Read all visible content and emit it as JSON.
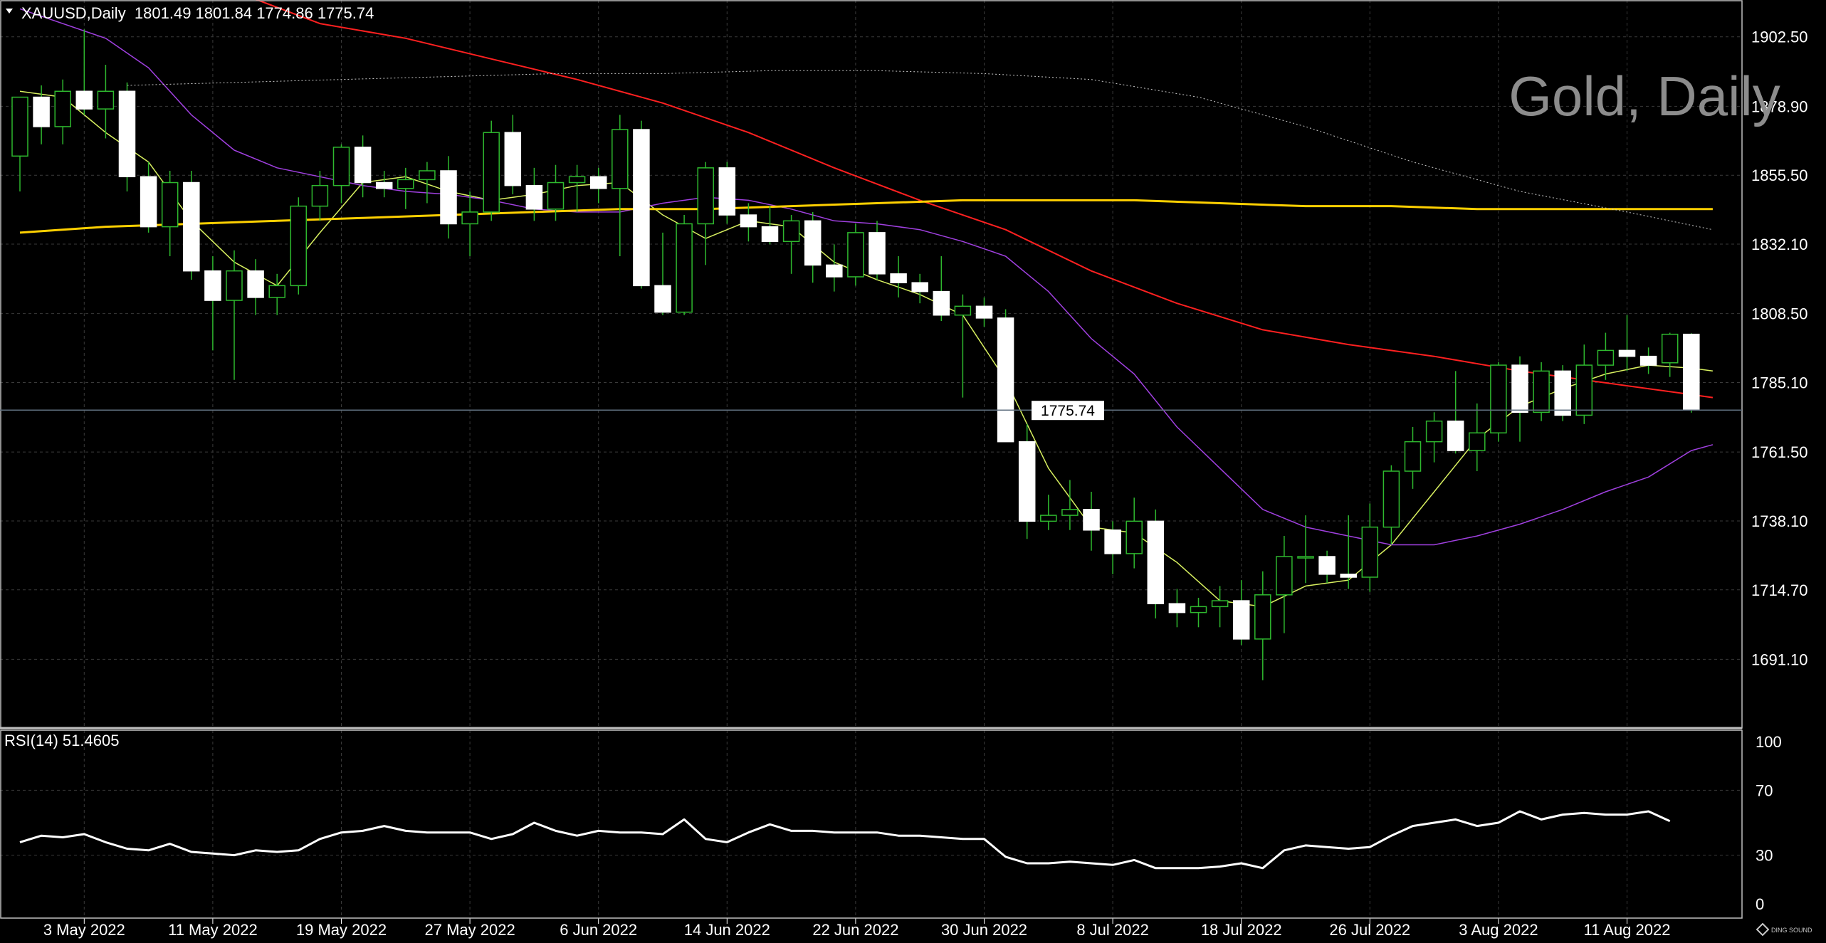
{
  "header": {
    "symbol_info": "XAUUSD,Daily  1801.49 1801.84 1774.86 1775.74"
  },
  "watermark": "Gold, Daily",
  "current_price_label": "1775.74",
  "rsi_header": "RSI(14) 51.4605",
  "logo_text": "DING SOUND",
  "colors": {
    "background": "#000000",
    "grid": "#3a3a3a",
    "candle_up_body": "#000000",
    "candle_down_body": "#ffffff",
    "wick": "#2eb82e",
    "ma_fast": "#d8f060",
    "ma_mid": "#a040e0",
    "ma_slow": "#ff2020",
    "ma_long": "#ffd000",
    "ma_long_dotted": "#c8c8c8",
    "rsi_line": "#ffffff",
    "price_line": "#607080"
  },
  "chart_data": [
    {
      "type": "candlestick",
      "title": "Gold, Daily",
      "symbol": "XAUUSD",
      "timeframe": "Daily",
      "ylim": [
        1668,
        1915
      ],
      "y_ticks": [
        "1902.50",
        "1878.90",
        "1855.50",
        "1832.10",
        "1808.50",
        "1785.10",
        "1761.50",
        "1738.10",
        "1714.70",
        "1691.10"
      ],
      "x_tick_labels": [
        "3 May 2022",
        "11 May 2022",
        "19 May 2022",
        "27 May 2022",
        "6 Jun 2022",
        "14 Jun 2022",
        "22 Jun 2022",
        "30 Jun 2022",
        "8 Jul 2022",
        "18 Jul 2022",
        "26 Jul 2022",
        "3 Aug 2022",
        "11 Aug 2022"
      ],
      "x_tick_index": [
        3,
        9,
        15,
        21,
        27,
        33,
        39,
        45,
        51,
        57,
        63,
        69,
        75
      ],
      "ohlc": [
        [
          1862,
          1882,
          1850,
          1882
        ],
        [
          1882,
          1886,
          1866,
          1872
        ],
        [
          1872,
          1888,
          1866,
          1884
        ],
        [
          1884,
          1905,
          1876,
          1878
        ],
        [
          1878,
          1893,
          1868,
          1884
        ],
        [
          1884,
          1887,
          1850,
          1855
        ],
        [
          1855,
          1860,
          1836,
          1838
        ],
        [
          1838,
          1857,
          1828,
          1853
        ],
        [
          1853,
          1857,
          1820,
          1823
        ],
        [
          1823,
          1828,
          1796,
          1813
        ],
        [
          1813,
          1830,
          1786,
          1823
        ],
        [
          1823,
          1827,
          1808,
          1814
        ],
        [
          1814,
          1822,
          1808,
          1818
        ],
        [
          1818,
          1848,
          1815,
          1845
        ],
        [
          1845,
          1857,
          1840,
          1852
        ],
        [
          1852,
          1866,
          1846,
          1865
        ],
        [
          1865,
          1869,
          1848,
          1853
        ],
        [
          1853,
          1857,
          1848,
          1851
        ],
        [
          1851,
          1858,
          1844,
          1854
        ],
        [
          1854,
          1860,
          1846,
          1857
        ],
        [
          1857,
          1862,
          1834,
          1839
        ],
        [
          1839,
          1850,
          1828,
          1843
        ],
        [
          1843,
          1874,
          1840,
          1870
        ],
        [
          1870,
          1876,
          1849,
          1852
        ],
        [
          1852,
          1858,
          1840,
          1844
        ],
        [
          1844,
          1859,
          1840,
          1853
        ],
        [
          1853,
          1859,
          1843,
          1855
        ],
        [
          1855,
          1858,
          1846,
          1851
        ],
        [
          1851,
          1876,
          1828,
          1871
        ],
        [
          1871,
          1874,
          1817,
          1818
        ],
        [
          1818,
          1836,
          1808,
          1809
        ],
        [
          1809,
          1842,
          1808,
          1839
        ],
        [
          1839,
          1860,
          1825,
          1858
        ],
        [
          1858,
          1860,
          1839,
          1842
        ],
        [
          1842,
          1846,
          1833,
          1838
        ],
        [
          1838,
          1845,
          1832,
          1833
        ],
        [
          1833,
          1842,
          1822,
          1840
        ],
        [
          1840,
          1843,
          1819,
          1825
        ],
        [
          1825,
          1832,
          1816,
          1821
        ],
        [
          1821,
          1839,
          1818,
          1836
        ],
        [
          1836,
          1840,
          1820,
          1822
        ],
        [
          1822,
          1828,
          1814,
          1819
        ],
        [
          1819,
          1822,
          1812,
          1816
        ],
        [
          1816,
          1828,
          1806,
          1808
        ],
        [
          1808,
          1815,
          1780,
          1811
        ],
        [
          1811,
          1814,
          1804,
          1807
        ],
        [
          1807,
          1810,
          1765,
          1765
        ],
        [
          1765,
          1771,
          1732,
          1738
        ],
        [
          1738,
          1747,
          1735,
          1740
        ],
        [
          1740,
          1752,
          1735,
          1742
        ],
        [
          1742,
          1748,
          1728,
          1735
        ],
        [
          1735,
          1738,
          1720,
          1727
        ],
        [
          1727,
          1746,
          1722,
          1738
        ],
        [
          1738,
          1742,
          1705,
          1710
        ],
        [
          1710,
          1715,
          1702,
          1707
        ],
        [
          1707,
          1712,
          1702,
          1709
        ],
        [
          1709,
          1716,
          1702,
          1711
        ],
        [
          1711,
          1718,
          1696,
          1698
        ],
        [
          1698,
          1721,
          1684,
          1713
        ],
        [
          1713,
          1733,
          1700,
          1726
        ],
        [
          1726,
          1740,
          1717,
          1726
        ],
        [
          1726,
          1728,
          1717,
          1720
        ],
        [
          1720,
          1740,
          1715,
          1719
        ],
        [
          1719,
          1744,
          1714,
          1736
        ],
        [
          1736,
          1757,
          1730,
          1755
        ],
        [
          1755,
          1770,
          1749,
          1765
        ],
        [
          1765,
          1775,
          1758,
          1772
        ],
        [
          1772,
          1789,
          1761,
          1762
        ],
        [
          1762,
          1778,
          1755,
          1768
        ],
        [
          1768,
          1792,
          1765,
          1791
        ],
        [
          1791,
          1794,
          1765,
          1775
        ],
        [
          1775,
          1792,
          1772,
          1789
        ],
        [
          1789,
          1791,
          1772,
          1774
        ],
        [
          1774,
          1798,
          1771,
          1791
        ],
        [
          1791,
          1802,
          1786,
          1796
        ],
        [
          1796,
          1808,
          1789,
          1794
        ],
        [
          1794,
          1797,
          1788,
          1791
        ],
        [
          1791.8,
          1802,
          1787,
          1801.49
        ],
        [
          1801.49,
          1801.84,
          1774.86,
          1775.74
        ]
      ],
      "moving_averages": [
        {
          "color": "#d8f060",
          "width": 1.5,
          "dashed": false,
          "points": [
            [
              0,
              1884
            ],
            [
              2,
              1882
            ],
            [
              4,
              1870
            ],
            [
              6,
              1860
            ],
            [
              8,
              1840
            ],
            [
              10,
              1826
            ],
            [
              12,
              1818
            ],
            [
              14,
              1836
            ],
            [
              16,
              1853
            ],
            [
              18,
              1855
            ],
            [
              20,
              1850
            ],
            [
              22,
              1847
            ],
            [
              24,
              1849
            ],
            [
              26,
              1852
            ],
            [
              28,
              1853
            ],
            [
              30,
              1842
            ],
            [
              32,
              1834
            ],
            [
              34,
              1840
            ],
            [
              36,
              1838
            ],
            [
              38,
              1826
            ],
            [
              40,
              1820
            ],
            [
              42,
              1815
            ],
            [
              44,
              1808
            ],
            [
              46,
              1786
            ],
            [
              48,
              1756
            ],
            [
              50,
              1736
            ],
            [
              52,
              1734
            ],
            [
              54,
              1724
            ],
            [
              56,
              1711
            ],
            [
              58,
              1709
            ],
            [
              60,
              1716
            ],
            [
              62,
              1718
            ],
            [
              64,
              1730
            ],
            [
              66,
              1748
            ],
            [
              68,
              1766
            ],
            [
              70,
              1777
            ],
            [
              72,
              1783
            ],
            [
              74,
              1788
            ],
            [
              76,
              1791
            ],
            [
              78,
              1790
            ],
            [
              79,
              1789
            ]
          ]
        },
        {
          "color": "#a040e0",
          "width": 1.5,
          "dashed": false,
          "points": [
            [
              0,
              1912
            ],
            [
              4,
              1902
            ],
            [
              6,
              1892
            ],
            [
              8,
              1876
            ],
            [
              10,
              1864
            ],
            [
              12,
              1858
            ],
            [
              14,
              1855
            ],
            [
              16,
              1852
            ],
            [
              18,
              1850
            ],
            [
              20,
              1849
            ],
            [
              22,
              1847
            ],
            [
              24,
              1844
            ],
            [
              26,
              1843
            ],
            [
              28,
              1843
            ],
            [
              30,
              1846
            ],
            [
              32,
              1848
            ],
            [
              34,
              1847
            ],
            [
              36,
              1844
            ],
            [
              38,
              1840
            ],
            [
              40,
              1839
            ],
            [
              42,
              1837
            ],
            [
              44,
              1833
            ],
            [
              46,
              1828
            ],
            [
              48,
              1816
            ],
            [
              50,
              1800
            ],
            [
              52,
              1788
            ],
            [
              54,
              1770
            ],
            [
              56,
              1756
            ],
            [
              58,
              1742
            ],
            [
              60,
              1736
            ],
            [
              62,
              1733
            ],
            [
              64,
              1730
            ],
            [
              66,
              1730
            ],
            [
              68,
              1733
            ],
            [
              70,
              1737
            ],
            [
              72,
              1742
            ],
            [
              74,
              1748
            ],
            [
              76,
              1753
            ],
            [
              78,
              1762
            ],
            [
              79,
              1764
            ]
          ]
        },
        {
          "color": "#ff2020",
          "width": 2,
          "dashed": false,
          "points": [
            [
              10,
              1918
            ],
            [
              14,
              1907
            ],
            [
              18,
              1902
            ],
            [
              22,
              1895
            ],
            [
              26,
              1888
            ],
            [
              30,
              1880
            ],
            [
              34,
              1870
            ],
            [
              38,
              1858
            ],
            [
              42,
              1847
            ],
            [
              46,
              1837
            ],
            [
              50,
              1823
            ],
            [
              54,
              1812
            ],
            [
              58,
              1803
            ],
            [
              62,
              1798
            ],
            [
              66,
              1794
            ],
            [
              70,
              1789
            ],
            [
              74,
              1785
            ],
            [
              78,
              1781
            ],
            [
              79,
              1780
            ]
          ]
        },
        {
          "color": "#ffd000",
          "width": 3,
          "dashed": false,
          "points": [
            [
              0,
              1836
            ],
            [
              4,
              1838
            ],
            [
              8,
              1839
            ],
            [
              12,
              1840
            ],
            [
              16,
              1841
            ],
            [
              20,
              1842
            ],
            [
              24,
              1843
            ],
            [
              28,
              1844
            ],
            [
              32,
              1844
            ],
            [
              36,
              1845
            ],
            [
              40,
              1846
            ],
            [
              44,
              1847
            ],
            [
              48,
              1847
            ],
            [
              52,
              1847
            ],
            [
              56,
              1846
            ],
            [
              60,
              1845
            ],
            [
              64,
              1845
            ],
            [
              68,
              1844
            ],
            [
              72,
              1844
            ],
            [
              76,
              1844
            ],
            [
              79,
              1844
            ]
          ]
        },
        {
          "color": "#c8c8c8",
          "width": 1,
          "dashed": true,
          "points": [
            [
              5,
              1886
            ],
            [
              10,
              1887
            ],
            [
              15,
              1888
            ],
            [
              20,
              1889
            ],
            [
              25,
              1890
            ],
            [
              30,
              1890
            ],
            [
              35,
              1891
            ],
            [
              40,
              1891
            ],
            [
              45,
              1890
            ],
            [
              50,
              1888
            ],
            [
              55,
              1882
            ],
            [
              60,
              1872
            ],
            [
              65,
              1860
            ],
            [
              70,
              1850
            ],
            [
              75,
              1843
            ],
            [
              79,
              1837
            ]
          ]
        }
      ]
    },
    {
      "type": "line",
      "title": "RSI(14) 51.4605",
      "ylim": [
        0,
        100
      ],
      "y_ticks": [
        0,
        30,
        70,
        100
      ],
      "series": [
        {
          "name": "RSI(14)",
          "values": [
            38,
            42,
            41,
            43,
            38,
            34,
            33,
            37,
            32,
            31,
            30,
            33,
            32,
            33,
            40,
            44,
            45,
            48,
            45,
            44,
            44,
            44,
            40,
            43,
            50,
            45,
            42,
            45,
            44,
            44,
            43,
            52,
            40,
            38,
            44,
            49,
            45,
            45,
            44,
            44,
            44,
            42,
            42,
            41,
            40,
            40,
            29,
            25,
            25,
            26,
            25,
            24,
            27,
            22,
            22,
            22,
            23,
            25,
            22,
            33,
            36,
            35,
            34,
            35,
            42,
            48,
            50,
            52,
            48,
            50,
            57,
            52,
            55,
            56,
            55,
            55,
            57,
            51
          ]
        }
      ]
    }
  ]
}
